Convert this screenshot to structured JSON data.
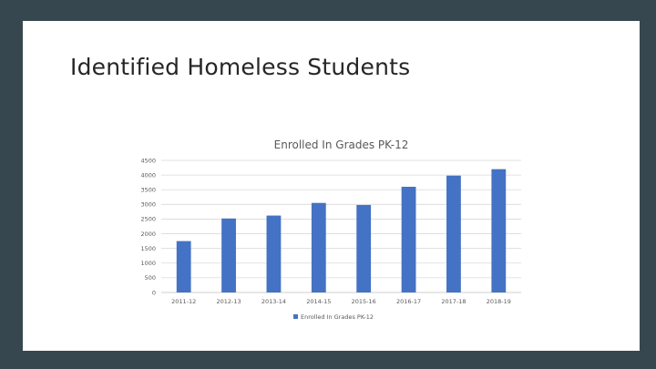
{
  "slide": {
    "title": "Identified Homeless Students"
  },
  "colors": {
    "background": "#37474f",
    "slide": "#ffffff",
    "bar": "#4472c4"
  },
  "chart_data": {
    "type": "bar",
    "title": "Enrolled In Grades PK-12",
    "xlabel": "",
    "ylabel": "",
    "ylim": [
      0,
      4500
    ],
    "yticks": [
      0,
      500,
      1000,
      1500,
      2000,
      2500,
      3000,
      3500,
      4000,
      4500
    ],
    "ytick_labels": [
      "0",
      "500",
      "1000",
      "1500",
      "2000",
      "2500",
      "3000",
      "3500",
      "4000",
      "4500"
    ],
    "categories": [
      "2011-12",
      "2012-13",
      "2013-14",
      "2014-15",
      "2015-16",
      "2016-17",
      "2017-18",
      "2018-19"
    ],
    "series": [
      {
        "name": "Enrolled In Grades PK-12",
        "color": "#4472c4",
        "values": [
          1750,
          2520,
          2620,
          3050,
          2980,
          3600,
          3980,
          4200
        ]
      }
    ],
    "grid": true,
    "legend": "bottom"
  }
}
